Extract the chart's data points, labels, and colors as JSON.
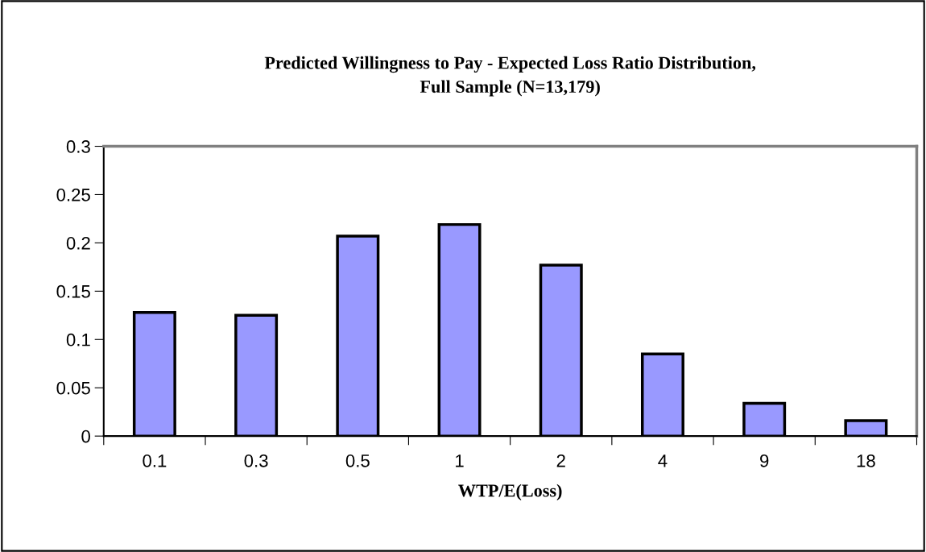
{
  "chart_data": {
    "type": "bar",
    "title": "Predicted Willingness to Pay - Expected Loss Ratio Distribution,\nFull Sample (N=13,179)",
    "xlabel": "WTP/E(Loss)",
    "categories": [
      "0.1",
      "0.3",
      "0.5",
      "1",
      "2",
      "4",
      "9",
      "18"
    ],
    "values": [
      0.128,
      0.125,
      0.207,
      0.219,
      0.177,
      0.085,
      0.034,
      0.016
    ],
    "color": "#9999ff",
    "ylim": [
      0,
      0.3
    ],
    "yticks": [
      0,
      0.05,
      0.1,
      0.15,
      0.2,
      0.25,
      0.3
    ],
    "grid": false,
    "legend": false
  }
}
